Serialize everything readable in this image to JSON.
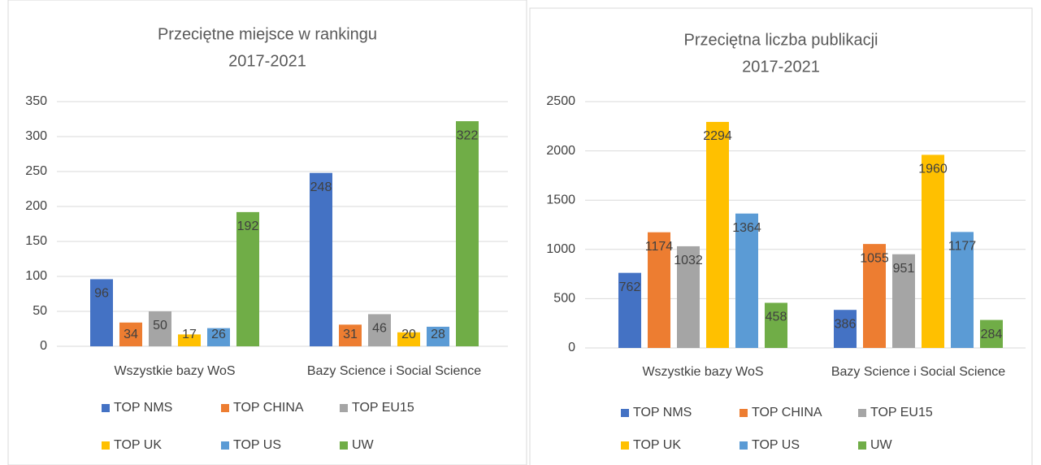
{
  "chart_data": [
    {
      "type": "bar",
      "title": "Przeciętne miejsce w rankingu",
      "subtitle": "2017-2021",
      "categories": [
        "Wszystkie bazy WoS",
        "Bazy Science i Social Science"
      ],
      "series": [
        {
          "name": "TOP NMS",
          "color": "#4472c4",
          "values": [
            96,
            248
          ]
        },
        {
          "name": "TOP CHINA",
          "color": "#ed7d31",
          "values": [
            34,
            31
          ]
        },
        {
          "name": "TOP EU15",
          "color": "#a5a5a5",
          "values": [
            50,
            46
          ]
        },
        {
          "name": "TOP UK",
          "color": "#ffc000",
          "values": [
            17,
            20
          ]
        },
        {
          "name": "TOP US",
          "color": "#5b9bd5",
          "values": [
            26,
            28
          ]
        },
        {
          "name": "UW",
          "color": "#70ad47",
          "values": [
            192,
            322
          ]
        }
      ],
      "ylim": [
        0,
        350
      ],
      "yticks": [
        0,
        50,
        100,
        150,
        200,
        250,
        300,
        350
      ],
      "grid": true,
      "legend": "bottom"
    },
    {
      "type": "bar",
      "title": "Przeciętna liczba publikacji",
      "subtitle": "2017-2021",
      "categories": [
        "Wszystkie bazy WoS",
        "Bazy Science i Social Science"
      ],
      "series": [
        {
          "name": "TOP NMS",
          "color": "#4472c4",
          "values": [
            762,
            386
          ]
        },
        {
          "name": "TOP CHINA",
          "color": "#ed7d31",
          "values": [
            1174,
            1055
          ]
        },
        {
          "name": "TOP EU15",
          "color": "#a5a5a5",
          "values": [
            1032,
            951
          ]
        },
        {
          "name": "TOP UK",
          "color": "#ffc000",
          "values": [
            2294,
            1960
          ]
        },
        {
          "name": "TOP US",
          "color": "#5b9bd5",
          "values": [
            1364,
            1177
          ]
        },
        {
          "name": "UW",
          "color": "#70ad47",
          "values": [
            458,
            284
          ]
        }
      ],
      "ylim": [
        0,
        2500
      ],
      "yticks": [
        0,
        500,
        1000,
        1500,
        2000,
        2500
      ],
      "grid": true,
      "legend": "bottom"
    }
  ]
}
